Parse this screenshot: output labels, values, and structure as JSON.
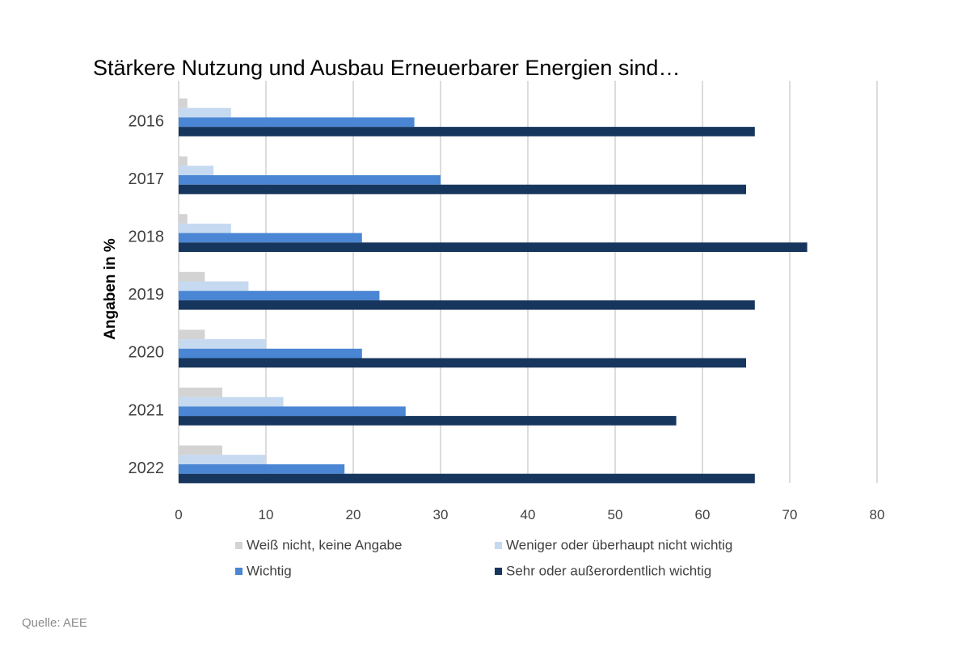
{
  "source_note": "Quelle: AEE",
  "chart_data": {
    "type": "bar",
    "orientation": "horizontal",
    "title": "Stärkere Nutzung und Ausbau Erneuerbarer Energien sind…",
    "ylabel": "Angaben in %",
    "xlabel": "",
    "categories": [
      "2016",
      "2017",
      "2018",
      "2019",
      "2020",
      "2021",
      "2022"
    ],
    "xlim": [
      0,
      80
    ],
    "xticks": [
      0,
      10,
      20,
      30,
      40,
      50,
      60,
      70,
      80
    ],
    "grid": true,
    "legend_position": "bottom",
    "series": [
      {
        "name": "Weiß nicht, keine Angabe",
        "color": "#d3d3d3",
        "values": [
          1,
          1,
          1,
          3,
          3,
          5,
          5
        ]
      },
      {
        "name": "Weniger oder überhaupt nicht wichtig",
        "color": "#c5d9f1",
        "values": [
          6,
          4,
          6,
          8,
          10,
          12,
          10
        ]
      },
      {
        "name": "Wichtig",
        "color": "#4a86d4",
        "values": [
          27,
          30,
          21,
          23,
          21,
          26,
          19
        ]
      },
      {
        "name": "Sehr oder außerordentlich wichtig",
        "color": "#17365d",
        "values": [
          66,
          65,
          72,
          66,
          65,
          57,
          66
        ]
      }
    ]
  }
}
